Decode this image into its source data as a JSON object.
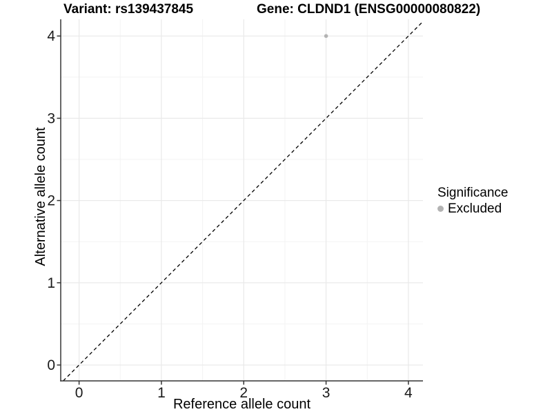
{
  "chart_data": {
    "type": "scatter",
    "title_left": "Variant: rs139437845",
    "title_right": "Gene: CLDND1 (ENSG00000080822)",
    "xlabel": "Reference allele count",
    "ylabel": "Alternative allele count",
    "xticks": [
      0,
      1,
      2,
      3,
      4
    ],
    "yticks": [
      0,
      1,
      2,
      3,
      4
    ],
    "xminor": [
      0.5,
      1.5,
      2.5,
      3.5
    ],
    "yminor": [
      0.5,
      1.5,
      2.5,
      3.5
    ],
    "xlim": [
      -0.223,
      4.177
    ],
    "ylim": [
      -0.193,
      4.203
    ],
    "grid": "major and minor, light gray, white background",
    "points": [
      {
        "x": 3,
        "y": 4,
        "series": "Excluded"
      }
    ],
    "identity_line": {
      "equation": "y = x",
      "style": "dashed",
      "from": [
        -0.193,
        -0.193
      ],
      "to": [
        4.177,
        4.177
      ]
    },
    "legend": {
      "title": "Significance",
      "position": "right",
      "items": [
        {
          "label": "Excluded",
          "color": "#b3b3b3"
        }
      ]
    },
    "colors": {
      "point": "#b3b3b3",
      "grid_major": "#e9e9e9",
      "grid_minor": "#f3f3f3",
      "axis": "#333333",
      "tick_label": "#1a1a1a",
      "dashed_line": "#000000"
    }
  }
}
